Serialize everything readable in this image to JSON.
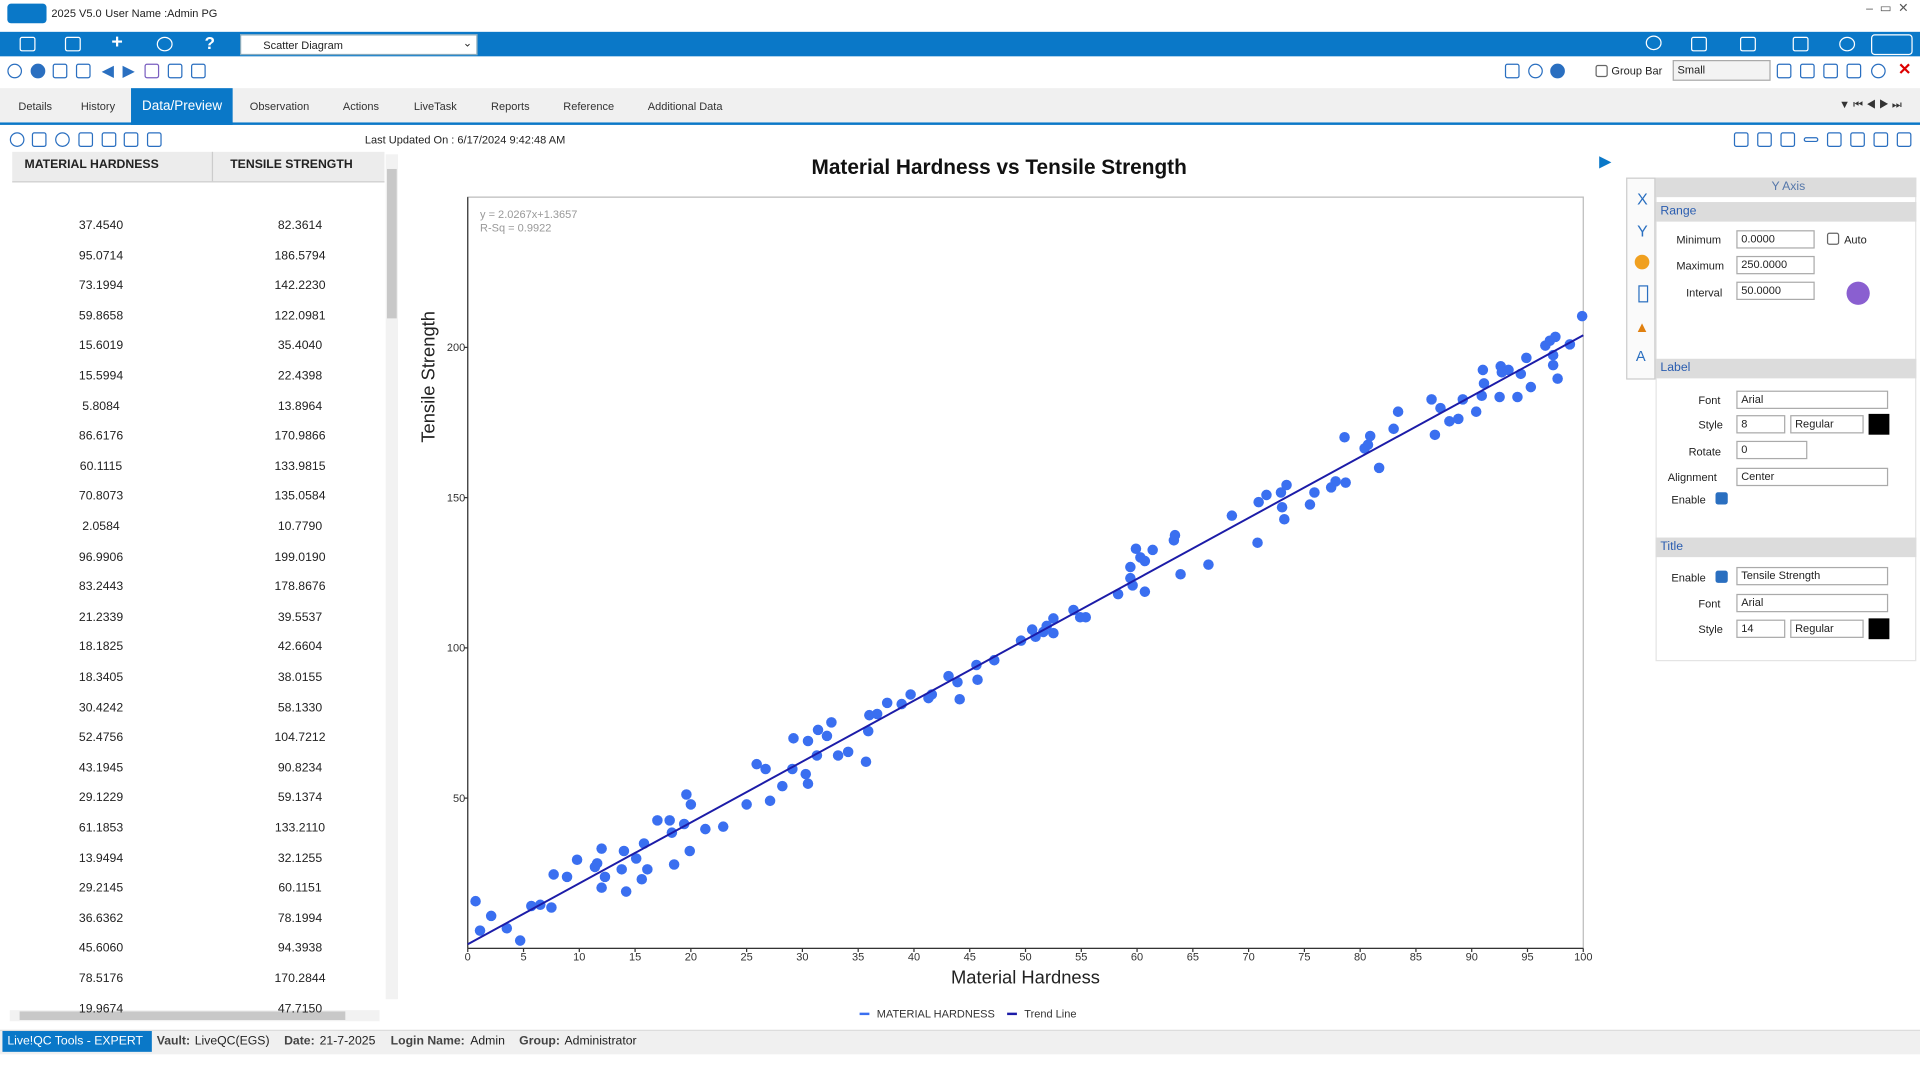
{
  "window": {
    "version": "2025 V5.0",
    "user": "User Name :Admin PG"
  },
  "toolbar": {
    "view_select": "Scatter Diagram",
    "group_bar": "Group Bar",
    "size_select": "Small"
  },
  "tabs": [
    "Details",
    "History",
    "Data/Preview",
    "Observation",
    "Actions",
    "LiveTask",
    "Reports",
    "Reference",
    "Additional Data"
  ],
  "last_updated": "Last Updated On : 6/17/2024 9:42:48 AM",
  "table": {
    "columns": [
      "MATERIAL HARDNESS",
      "TENSILE STRENGTH"
    ],
    "rows": [
      [
        "37.4540",
        "82.3614"
      ],
      [
        "95.0714",
        "186.5794"
      ],
      [
        "73.1994",
        "142.2230"
      ],
      [
        "59.8658",
        "122.0981"
      ],
      [
        "15.6019",
        "35.4040"
      ],
      [
        "15.5994",
        "22.4398"
      ],
      [
        "5.8084",
        "13.8964"
      ],
      [
        "86.6176",
        "170.9866"
      ],
      [
        "60.1115",
        "133.9815"
      ],
      [
        "70.8073",
        "135.0584"
      ],
      [
        "2.0584",
        "10.7790"
      ],
      [
        "96.9906",
        "199.0190"
      ],
      [
        "83.2443",
        "178.8676"
      ],
      [
        "21.2339",
        "39.5537"
      ],
      [
        "18.1825",
        "42.6604"
      ],
      [
        "18.3405",
        "38.0155"
      ],
      [
        "30.4242",
        "58.1330"
      ],
      [
        "52.4756",
        "104.7212"
      ],
      [
        "43.1945",
        "90.8234"
      ],
      [
        "29.1229",
        "59.1374"
      ],
      [
        "61.1853",
        "133.2110"
      ],
      [
        "13.9494",
        "32.1255"
      ],
      [
        "29.2145",
        "60.1151"
      ],
      [
        "36.6362",
        "78.1994"
      ],
      [
        "45.6060",
        "94.3938"
      ],
      [
        "78.5176",
        "170.2844"
      ],
      [
        "19.9674",
        "47.7150"
      ]
    ]
  },
  "chart_data": {
    "type": "scatter",
    "title": "Material Hardness vs Tensile Strength",
    "x_label": "Material Hardness",
    "y_label": "Tensile Strength",
    "annotations": [
      "y = 2.0267x+1.3657",
      "R-Sq = 0.9922"
    ],
    "xlim": [
      0,
      100
    ],
    "ylim": [
      0,
      250
    ],
    "xticks": [
      0,
      5,
      10,
      15,
      20,
      25,
      30,
      35,
      40,
      45,
      50,
      55,
      60,
      65,
      70,
      75,
      80,
      85,
      90,
      95,
      100
    ],
    "yticks": [
      50,
      100,
      150,
      200
    ],
    "grid": false,
    "legend": "bottom",
    "series": [
      {
        "name": "MATERIAL HARDNESS",
        "color": "#3a6ff0",
        "x": [
          0.7,
          1.1,
          2.1,
          3.5,
          4.7,
          5.7,
          6.5,
          7.5,
          7.7,
          8.9,
          9.8,
          11.4,
          11.6,
          12.0,
          12.0,
          12.3,
          13.8,
          14.0,
          14.2,
          15.1,
          15.6,
          15.8,
          16.1,
          17.0,
          18.1,
          18.3,
          18.5,
          19.4,
          19.6,
          20.0,
          19.9,
          21.3,
          22.9,
          25.0,
          25.9,
          26.7,
          27.1,
          28.2,
          29.1,
          29.2,
          30.3,
          30.5,
          30.5,
          31.3,
          31.4,
          32.2,
          32.6,
          33.2,
          34.1,
          35.7,
          35.9,
          36.0,
          36.7,
          37.6,
          38.9,
          39.7,
          41.3,
          41.6,
          43.1,
          43.9,
          44.1,
          45.6,
          45.7,
          47.2,
          49.6,
          50.6,
          50.9,
          51.6,
          51.9,
          52.5,
          52.5,
          54.3,
          54.9,
          55.4,
          58.3,
          59.4,
          59.4,
          59.6,
          59.9,
          60.3,
          60.7,
          60.7,
          61.4,
          63.3,
          63.4,
          63.9,
          66.4,
          68.5,
          70.8,
          70.9,
          71.6,
          73.0,
          73.2,
          72.9,
          73.4,
          75.5,
          75.9,
          77.4,
          77.8,
          78.7,
          78.6,
          80.4,
          80.7,
          80.9,
          81.7,
          83.0,
          83.4,
          86.4,
          86.7,
          87.2,
          88.0,
          88.8,
          89.2,
          90.4,
          90.9,
          91.0,
          91.1,
          92.5,
          92.6,
          92.7,
          93.3,
          94.1,
          94.4,
          94.9,
          95.3,
          96.6,
          97.0,
          97.3,
          97.3,
          97.5,
          97.7,
          98.8,
          99.9
        ],
        "values": [
          15.7,
          5.9,
          10.8,
          6.7,
          2.6,
          14.1,
          14.5,
          13.6,
          24.6,
          23.8,
          29.5,
          27.1,
          28.3,
          33.2,
          20.2,
          23.8,
          26.3,
          32.4,
          18.9,
          29.9,
          23.0,
          34.9,
          26.3,
          42.6,
          42.6,
          38.5,
          27.9,
          41.4,
          51.2,
          47.9,
          32.4,
          39.7,
          40.5,
          47.9,
          61.3,
          59.7,
          49.1,
          54.0,
          59.7,
          69.9,
          58.0,
          69.0,
          54.8,
          64.2,
          72.7,
          70.7,
          75.2,
          64.2,
          65.4,
          62.1,
          72.3,
          77.6,
          78.0,
          81.7,
          81.3,
          84.5,
          83.3,
          84.5,
          90.6,
          88.6,
          82.9,
          94.3,
          89.4,
          95.9,
          102.4,
          106.1,
          103.7,
          105.3,
          107.3,
          104.9,
          109.8,
          112.6,
          110.2,
          110.2,
          117.9,
          123.2,
          126.9,
          120.8,
          133.0,
          130.1,
          118.7,
          128.9,
          132.6,
          135.8,
          137.5,
          124.5,
          127.7,
          144.0,
          135.0,
          148.5,
          150.9,
          146.8,
          142.8,
          151.7,
          154.2,
          147.7,
          151.7,
          153.4,
          155.4,
          155.0,
          170.1,
          166.4,
          167.6,
          170.5,
          159.9,
          172.9,
          178.6,
          182.7,
          170.9,
          179.8,
          175.4,
          176.2,
          182.7,
          178.6,
          183.9,
          192.5,
          188.0,
          183.5,
          193.7,
          191.7,
          192.5,
          183.5,
          191.2,
          196.5,
          186.8,
          200.6,
          202.2,
          197.4,
          194.1,
          203.5,
          189.6,
          201.0,
          210.4
        ]
      },
      {
        "name": "Trend Line",
        "type": "line",
        "color": "#1c1ca8",
        "x": [
          0,
          100
        ],
        "values": [
          1.3657,
          204.0357
        ]
      }
    ]
  },
  "axis_panel": {
    "title": "Y Axis",
    "side_tabs": [
      "X",
      "Y"
    ],
    "range": {
      "heading": "Range",
      "fields": [
        {
          "label": "Minimum",
          "value": "0.0000"
        },
        {
          "label": "Maximum",
          "value": "250.0000"
        },
        {
          "label": "Interval",
          "value": "50.0000"
        }
      ],
      "auto": "Auto"
    },
    "label": {
      "heading": "Label",
      "font_label": "Font",
      "font": "Arial",
      "style_label": "Style",
      "size": "8",
      "weight": "Regular",
      "rotate_label": "Rotate",
      "rotate": "0",
      "alignment_label": "Alignment",
      "alignment": "Center",
      "enable_label": "Enable"
    },
    "title_section": {
      "heading": "Title",
      "enable_label": "Enable",
      "text": "Tensile Strength",
      "font_label": "Font",
      "font": "Arial",
      "style_label": "Style",
      "size": "14",
      "weight": "Regular"
    }
  },
  "status": {
    "product": "Live!QC Tools - EXPERT",
    "items": [
      {
        "label": "Vault:",
        "value": "LiveQC(EGS)"
      },
      {
        "label": "Date:",
        "value": "21-7-2025"
      },
      {
        "label": "Login Name:",
        "value": "Admin"
      },
      {
        "label": "Group:",
        "value": "Administrator"
      }
    ]
  }
}
